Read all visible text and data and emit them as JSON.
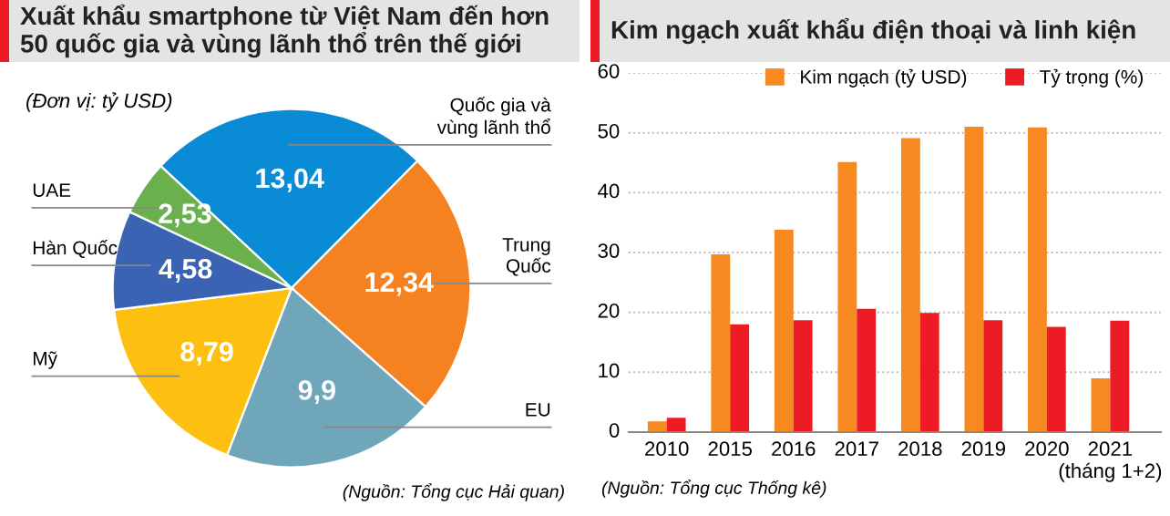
{
  "chart_data": [
    {
      "type": "pie",
      "title": "Xuất khẩu smartphone từ Việt Nam đến hơn\n50 quốc gia và vùng lãnh thổ trên thế giới",
      "subtitle": "(Đơn vị: tỷ USD)",
      "categories": [
        "Quốc gia và\nvùng lãnh thổ",
        "Trung\nQuốc",
        "EU",
        "Mỹ",
        "Hàn Quốc",
        "UAE"
      ],
      "values": [
        13.04,
        12.34,
        9.9,
        8.79,
        4.58,
        2.53
      ],
      "value_labels": [
        "13,04",
        "12,34",
        "9,9",
        "8,79",
        "4,58",
        "2,53"
      ],
      "colors": [
        "#0a8bd6",
        "#f58220",
        "#6fa6b9",
        "#fdbf10",
        "#3a64b3",
        "#6ab04c"
      ],
      "annotations": [
        "(Nguồn: Tổng cục Hải quan)"
      ]
    },
    {
      "type": "bar",
      "title": "Kim ngạch xuất khẩu điện thoại và linh kiện",
      "categories": [
        "2010",
        "2015",
        "2016",
        "2017",
        "2018",
        "2019",
        "2020",
        "2021\n(tháng 1+2)"
      ],
      "series": [
        {
          "name": "Kim ngạch (tỷ USD)",
          "color": "#f6891f",
          "values": [
            1.8,
            29.7,
            33.8,
            45.1,
            49.1,
            51.0,
            50.9,
            9.0
          ]
        },
        {
          "name": "Tỷ trọng (%)",
          "color": "#ed1c24",
          "values": [
            2.4,
            18.0,
            18.7,
            20.6,
            19.9,
            18.7,
            17.6,
            18.6
          ]
        }
      ],
      "ylim": [
        0,
        60
      ],
      "yticks": [
        0,
        10,
        20,
        30,
        40,
        50,
        60
      ],
      "grid": "y",
      "legend": "top right",
      "annotations": [
        "(Nguồn: Tổng cục Thống kê)"
      ]
    }
  ]
}
